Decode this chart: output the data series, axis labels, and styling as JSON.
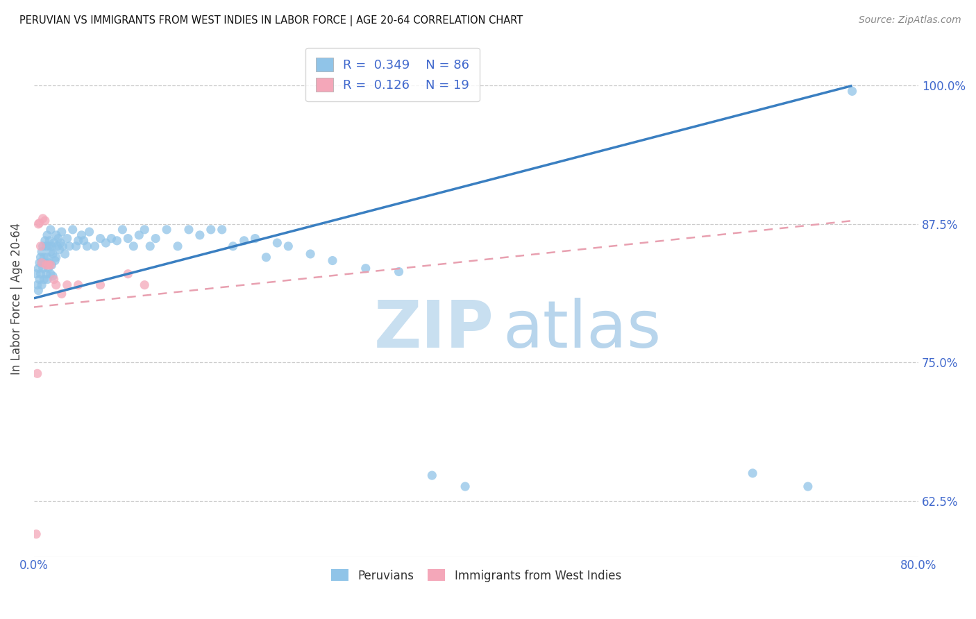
{
  "title": "PERUVIAN VS IMMIGRANTS FROM WEST INDIES IN LABOR FORCE | AGE 20-64 CORRELATION CHART",
  "source": "Source: ZipAtlas.com",
  "ylabel": "In Labor Force | Age 20-64",
  "ytick_labels": [
    "62.5%",
    "75.0%",
    "87.5%",
    "100.0%"
  ],
  "ytick_values": [
    0.625,
    0.75,
    0.875,
    1.0
  ],
  "xlim": [
    0.0,
    0.8
  ],
  "ylim": [
    0.575,
    1.04
  ],
  "watermark_zip": "ZIP",
  "watermark_atlas": "atlas",
  "legend_r1_val": "0.349",
  "legend_n1_val": "86",
  "legend_r2_val": "0.126",
  "legend_n2_val": "19",
  "blue_color": "#90c4e8",
  "pink_color": "#f4a7b9",
  "line_blue": "#3a7fc1",
  "line_pink": "#e8a0b0",
  "text_blue": "#4169cd",
  "blue_scatter_x": [
    0.002,
    0.003,
    0.004,
    0.004,
    0.005,
    0.005,
    0.006,
    0.006,
    0.007,
    0.007,
    0.007,
    0.008,
    0.008,
    0.009,
    0.009,
    0.01,
    0.01,
    0.011,
    0.011,
    0.012,
    0.012,
    0.012,
    0.013,
    0.013,
    0.014,
    0.014,
    0.015,
    0.015,
    0.015,
    0.016,
    0.016,
    0.017,
    0.017,
    0.018,
    0.019,
    0.02,
    0.02,
    0.021,
    0.022,
    0.023,
    0.024,
    0.025,
    0.026,
    0.028,
    0.03,
    0.032,
    0.035,
    0.038,
    0.04,
    0.043,
    0.045,
    0.048,
    0.05,
    0.055,
    0.06,
    0.065,
    0.07,
    0.075,
    0.08,
    0.085,
    0.09,
    0.095,
    0.1,
    0.105,
    0.11,
    0.12,
    0.13,
    0.14,
    0.15,
    0.16,
    0.17,
    0.18,
    0.19,
    0.2,
    0.21,
    0.22,
    0.23,
    0.25,
    0.27,
    0.3,
    0.33,
    0.36,
    0.39,
    0.65,
    0.7,
    0.74
  ],
  "blue_scatter_y": [
    0.83,
    0.82,
    0.835,
    0.815,
    0.84,
    0.825,
    0.845,
    0.83,
    0.85,
    0.84,
    0.82,
    0.855,
    0.835,
    0.845,
    0.825,
    0.86,
    0.84,
    0.855,
    0.83,
    0.865,
    0.845,
    0.825,
    0.855,
    0.835,
    0.86,
    0.84,
    0.87,
    0.85,
    0.83,
    0.855,
    0.838,
    0.848,
    0.828,
    0.858,
    0.842,
    0.865,
    0.845,
    0.855,
    0.862,
    0.852,
    0.858,
    0.868,
    0.855,
    0.848,
    0.862,
    0.855,
    0.87,
    0.855,
    0.86,
    0.865,
    0.86,
    0.855,
    0.868,
    0.855,
    0.862,
    0.858,
    0.862,
    0.86,
    0.87,
    0.862,
    0.855,
    0.865,
    0.87,
    0.855,
    0.862,
    0.87,
    0.855,
    0.87,
    0.865,
    0.87,
    0.87,
    0.855,
    0.86,
    0.862,
    0.845,
    0.858,
    0.855,
    0.848,
    0.842,
    0.835,
    0.832,
    0.648,
    0.638,
    0.65,
    0.638,
    0.995
  ],
  "pink_scatter_x": [
    0.002,
    0.003,
    0.004,
    0.005,
    0.006,
    0.007,
    0.008,
    0.01,
    0.011,
    0.013,
    0.015,
    0.018,
    0.02,
    0.025,
    0.03,
    0.04,
    0.06,
    0.085,
    0.1
  ],
  "pink_scatter_y": [
    0.595,
    0.74,
    0.875,
    0.876,
    0.855,
    0.84,
    0.88,
    0.878,
    0.838,
    0.838,
    0.838,
    0.825,
    0.82,
    0.812,
    0.82,
    0.82,
    0.82,
    0.83,
    0.82
  ],
  "blue_line_x": [
    0.0,
    0.74
  ],
  "blue_line_y": [
    0.808,
    1.0
  ],
  "pink_line_x": [
    0.0,
    0.74
  ],
  "pink_line_y": [
    0.8,
    0.878
  ]
}
